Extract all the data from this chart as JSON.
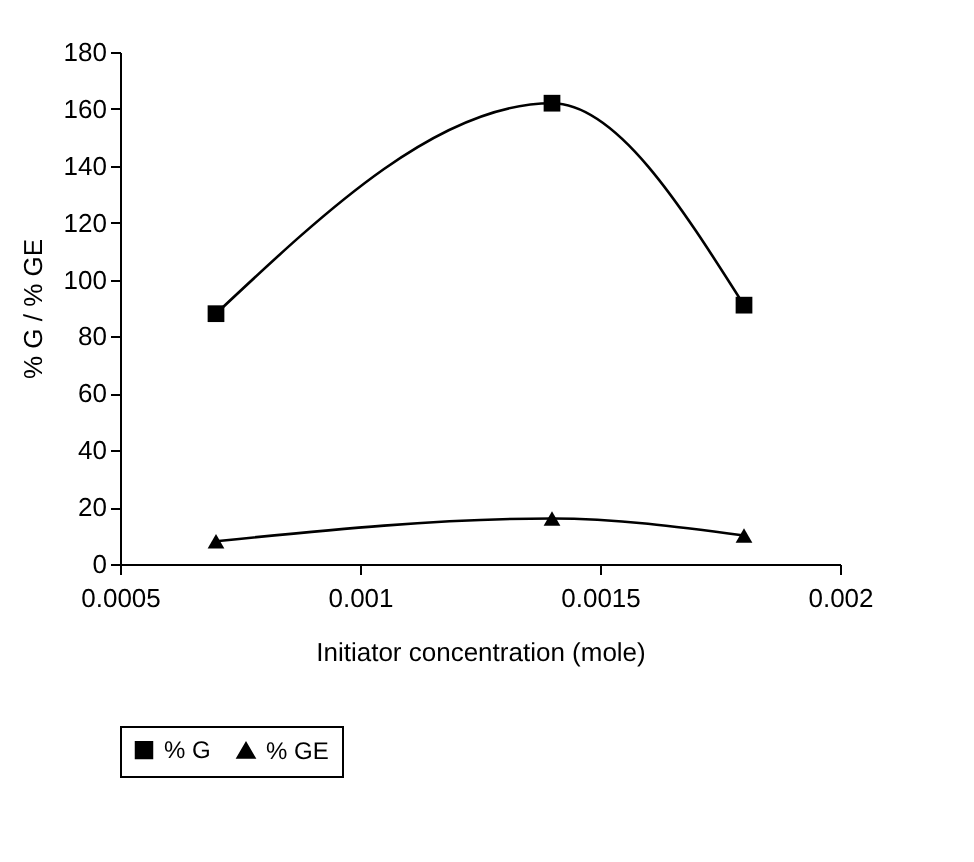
{
  "chart_data": {
    "type": "line",
    "xlabel": "Initiator concentration (mole)",
    "ylabel": "% G / % GE",
    "x": [
      0.0007,
      0.0014,
      0.0018
    ],
    "series": [
      {
        "name": "% G",
        "color": "#000000",
        "marker": "square",
        "values": [
          88,
          162,
          91
        ]
      },
      {
        "name": "% GE",
        "color": "#000000",
        "marker": "triangle",
        "values": [
          8,
          16,
          10
        ]
      }
    ],
    "xlim": [
      0.0005,
      0.002
    ],
    "xticks": [
      0.0005,
      0.001,
      0.0015,
      0.002
    ],
    "ylim": [
      0,
      180
    ],
    "yticks": [
      0,
      20,
      40,
      60,
      80,
      100,
      120,
      140,
      160,
      180
    ],
    "grid": false,
    "legend": "bottom",
    "line_style": "solid"
  }
}
